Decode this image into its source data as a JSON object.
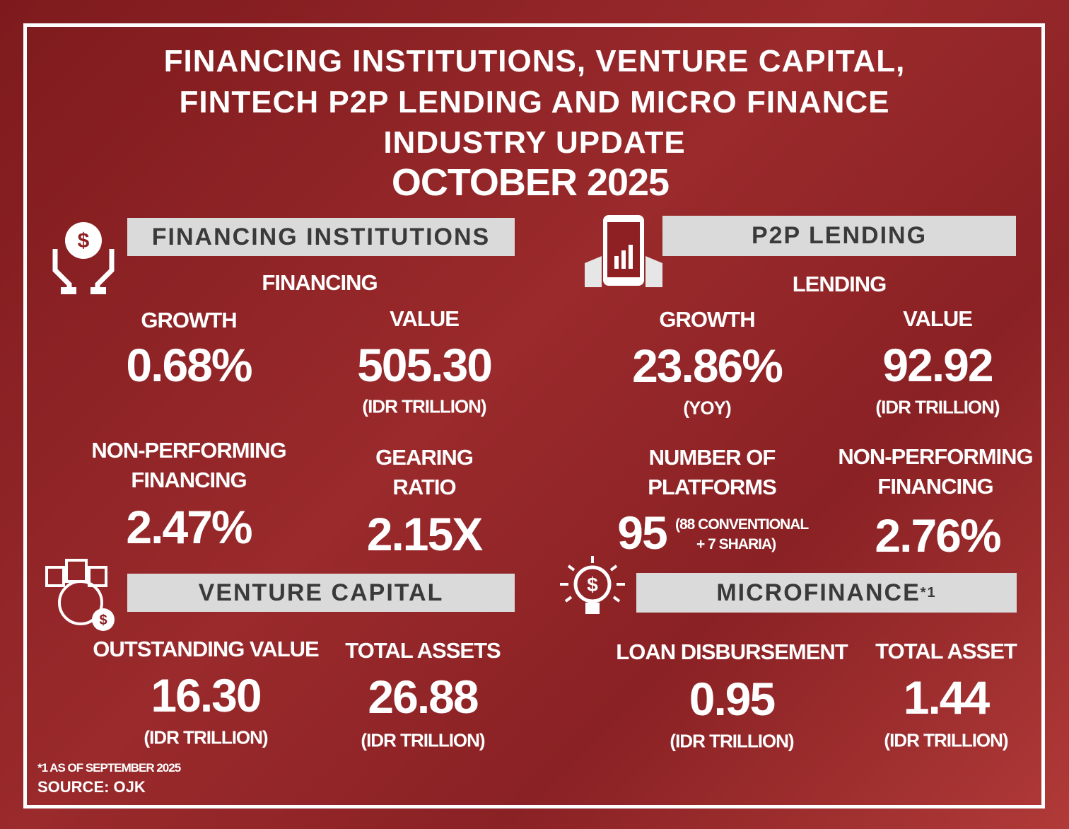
{
  "header": {
    "title_lines": [
      "FINANCING INSTITUTIONS, VENTURE CAPITAL,",
      "FINTECH P2P LENDING AND MICRO FINANCE",
      "INDUSTRY UPDATE"
    ],
    "date": "OCTOBER 2025"
  },
  "financing_institutions": {
    "title": "FINANCING INSTITUTIONS",
    "subtitle": "FINANCING",
    "growth": {
      "label": "GROWTH",
      "value": "0.68%"
    },
    "value": {
      "label": "VALUE",
      "value": "505.30",
      "unit": "(IDR TRILLION)"
    },
    "npf": {
      "label_lines": [
        "NON-PERFORMING",
        "FINANCING"
      ],
      "value": "2.47%"
    },
    "gearing": {
      "label_lines": [
        "GEARING",
        "RATIO"
      ],
      "value": "2.15X"
    }
  },
  "p2p_lending": {
    "title": "P2P LENDING",
    "subtitle": "LENDING",
    "growth": {
      "label": "GROWTH",
      "value": "23.86%",
      "unit": "(YOY)"
    },
    "value": {
      "label": "VALUE",
      "value": "92.92",
      "unit": "(IDR TRILLION)"
    },
    "platforms": {
      "label_lines": [
        "NUMBER OF",
        "PLATFORMS"
      ],
      "value": "95",
      "note_lines": [
        "(88 CONVENTIONAL",
        "+ 7 SHARIA)"
      ]
    },
    "npf": {
      "label_lines": [
        "NON-PERFORMING",
        "FINANCING"
      ],
      "value": "2.76%"
    }
  },
  "venture_capital": {
    "title": "VENTURE CAPITAL",
    "outstanding": {
      "label": "OUTSTANDING VALUE",
      "value": "16.30",
      "unit": "(IDR TRILLION)"
    },
    "assets": {
      "label": "TOTAL ASSETS",
      "value": "26.88",
      "unit": "(IDR TRILLION)"
    }
  },
  "microfinance": {
    "title": "MICROFINANCE",
    "title_note": "*1",
    "disbursement": {
      "label": "LOAN DISBURSEMENT",
      "value": "0.95",
      "unit": "(IDR TRILLION)"
    },
    "asset": {
      "label": "TOTAL ASSET",
      "value": "1.44",
      "unit": "(IDR TRILLION)"
    }
  },
  "footer": {
    "footnote": "*1 AS OF SEPTEMBER 2025",
    "source": "SOURCE: OJK"
  }
}
